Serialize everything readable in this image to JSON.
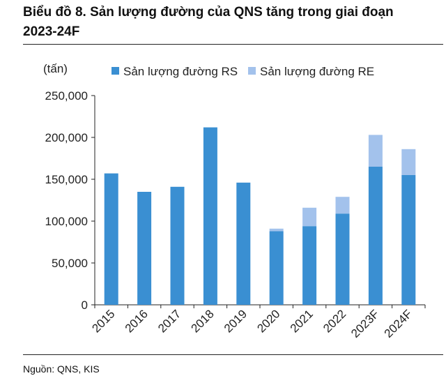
{
  "title_line1": "Biểu đồ 8. Sản lượng đường của QNS tăng trong giai đoạn",
  "title_line2": "2023-24F",
  "source": "Nguồn: QNS, KIS",
  "chart_data": {
    "type": "bar",
    "stacked": true,
    "unit_label": "(tấn)",
    "categories": [
      "2015",
      "2016",
      "2017",
      "2018",
      "2019",
      "2020",
      "2021",
      "2022",
      "2023F",
      "2024F"
    ],
    "series": [
      {
        "name": "Sản lượng đường RS",
        "color": "#3a8fd2",
        "values": [
          157000,
          135000,
          141000,
          212000,
          146000,
          88000,
          94000,
          109000,
          165000,
          155000
        ]
      },
      {
        "name": "Sản lượng đường RE",
        "color": "#a3c2ec",
        "values": [
          0,
          0,
          0,
          0,
          0,
          3000,
          22000,
          20000,
          38000,
          31000
        ]
      }
    ],
    "yticks": [
      0,
      50000,
      100000,
      150000,
      200000,
      250000
    ],
    "ytick_labels": [
      "0",
      "50,000",
      "100,000",
      "150,000",
      "200,000",
      "250,000"
    ],
    "ylim": [
      0,
      250000
    ],
    "legend_position": "top",
    "grid": false
  }
}
